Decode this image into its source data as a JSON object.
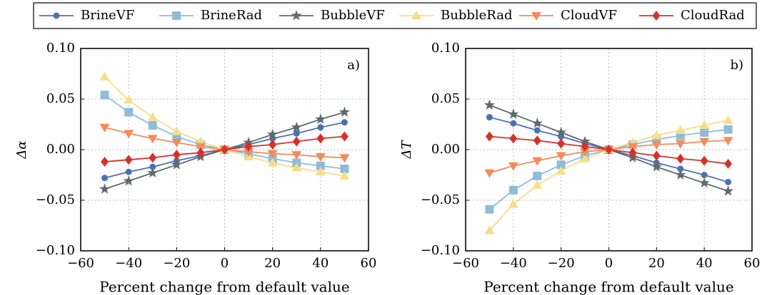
{
  "chart_data": [
    {
      "type": "line",
      "ylabel": "Δα",
      "xlabel": "Percent change from default value",
      "annotation": "a)",
      "legend": "top",
      "grid": true,
      "x": [
        -50,
        -40,
        -30,
        -20,
        -10,
        0,
        10,
        20,
        30,
        40,
        50
      ],
      "xlim": [
        -60,
        60
      ],
      "xticks": [
        {
          "value": -60,
          "label": "−60"
        },
        {
          "value": -40,
          "label": "−40"
        },
        {
          "value": -20,
          "label": "−20"
        },
        0,
        20,
        40,
        60
      ],
      "ylim": [
        -0.1,
        0.1
      ],
      "yticks": [
        {
          "value": -0.1,
          "label": "−0.10"
        },
        {
          "value": -0.05,
          "label": "−0.05"
        },
        {
          "value": 0,
          "label": "0.00"
        },
        {
          "value": 0.05,
          "label": "0.05"
        },
        {
          "value": 0.1,
          "label": "0.10"
        }
      ],
      "series": [
        {
          "name": "BrineVF",
          "color": "#4a72b0",
          "marker": "circle",
          "values": [
            -0.028,
            -0.022,
            -0.017,
            -0.011,
            -0.006,
            0,
            0.005,
            0.011,
            0.016,
            0.022,
            0.027
          ]
        },
        {
          "name": "BrineRad",
          "color": "#8fbcd9",
          "marker": "square",
          "values": [
            0.054,
            0.037,
            0.024,
            0.013,
            0.005,
            0,
            -0.004,
            -0.009,
            -0.013,
            -0.016,
            -0.019
          ]
        },
        {
          "name": "BubbleVF",
          "color": "#5f6a6e",
          "marker": "star",
          "values": [
            -0.039,
            -0.031,
            -0.023,
            -0.015,
            -0.007,
            0,
            0.007,
            0.015,
            0.022,
            0.03,
            0.037
          ]
        },
        {
          "name": "BubbleRad",
          "color": "#f8dc88",
          "marker": "triangle-up",
          "values": [
            0.072,
            0.049,
            0.032,
            0.018,
            0.008,
            0,
            -0.007,
            -0.013,
            -0.018,
            -0.022,
            -0.026
          ]
        },
        {
          "name": "CloudVF",
          "color": "#f28c5c",
          "marker": "triangle-down",
          "values": [
            0.022,
            0.016,
            0.011,
            0.007,
            0.003,
            0,
            -0.002,
            -0.004,
            -0.005,
            -0.007,
            -0.008
          ]
        },
        {
          "name": "CloudRad",
          "color": "#d7302a",
          "marker": "diamond",
          "values": [
            -0.012,
            -0.01,
            -0.008,
            -0.005,
            -0.003,
            0,
            0.003,
            0.005,
            0.008,
            0.011,
            0.013
          ]
        }
      ]
    },
    {
      "type": "line",
      "ylabel": "ΔT",
      "xlabel": "Percent change from default value",
      "annotation": "b)",
      "grid": true,
      "x": [
        -50,
        -40,
        -30,
        -20,
        -10,
        0,
        10,
        20,
        30,
        40,
        50
      ],
      "xlim": [
        -60,
        60
      ],
      "xticks": [
        {
          "value": -60,
          "label": "−60"
        },
        {
          "value": -40,
          "label": "−40"
        },
        {
          "value": -20,
          "label": "−20"
        },
        0,
        20,
        40,
        60
      ],
      "ylim": [
        -0.1,
        0.1
      ],
      "yticks": [
        {
          "value": -0.1,
          "label": "−0.10"
        },
        {
          "value": -0.05,
          "label": "−0.05"
        },
        {
          "value": 0,
          "label": "0.00"
        },
        {
          "value": 0.05,
          "label": "0.05"
        },
        {
          "value": 0.1,
          "label": "0.10"
        }
      ],
      "series": [
        {
          "color": "#4a72b0",
          "marker": "circle",
          "values": [
            0.032,
            0.026,
            0.019,
            0.013,
            0.006,
            0,
            -0.006,
            -0.013,
            -0.019,
            -0.025,
            -0.032
          ]
        },
        {
          "color": "#8fbcd9",
          "marker": "square",
          "values": [
            -0.059,
            -0.04,
            -0.026,
            -0.015,
            -0.006,
            0,
            0.005,
            0.01,
            0.014,
            0.017,
            0.02
          ]
        },
        {
          "color": "#5f6a6e",
          "marker": "star",
          "values": [
            0.044,
            0.035,
            0.026,
            0.017,
            0.008,
            0,
            -0.008,
            -0.017,
            -0.025,
            -0.033,
            -0.041
          ]
        },
        {
          "color": "#f8dc88",
          "marker": "triangle-up",
          "values": [
            -0.08,
            -0.054,
            -0.035,
            -0.021,
            -0.009,
            0,
            0.007,
            0.014,
            0.019,
            0.024,
            0.029
          ]
        },
        {
          "color": "#f28c5c",
          "marker": "triangle-down",
          "values": [
            -0.023,
            -0.016,
            -0.011,
            -0.006,
            -0.002,
            0,
            0.003,
            0.005,
            0.006,
            0.008,
            0.009
          ]
        },
        {
          "color": "#d7302a",
          "marker": "diamond",
          "values": [
            0.013,
            0.011,
            0.009,
            0.006,
            0.003,
            0,
            -0.003,
            -0.006,
            -0.009,
            -0.011,
            -0.014
          ]
        }
      ]
    }
  ]
}
